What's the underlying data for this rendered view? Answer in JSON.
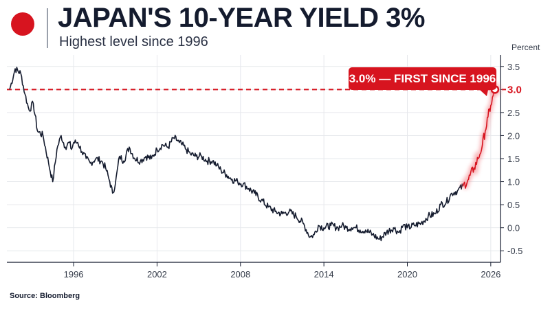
{
  "header": {
    "title": "JAPAN'S 10-YEAR YIELD 3%",
    "subtitle": "Highest level since 1996"
  },
  "colors": {
    "accent_red": "#d7141f",
    "line_navy": "#141b2e",
    "grid": "#e6e8ec"
  },
  "footer": {
    "source": "Source: Bloomberg"
  },
  "chart_data": {
    "type": "line",
    "title": "JAPAN'S 10-YEAR YIELD 3%",
    "subtitle": "Highest level since 1996",
    "ylabel": "Percent",
    "xlim": [
      1991.2,
      2026.7
    ],
    "ylim": [
      -0.75,
      3.75
    ],
    "y_ticks": [
      -0.5,
      0.0,
      0.5,
      1.0,
      1.5,
      2.0,
      2.5,
      3.0,
      3.5
    ],
    "y_tick_labels": [
      "-0.5",
      "0.0",
      "0.5",
      "1.0",
      "1.5",
      "2.0",
      "2.5",
      "3.0",
      "3.5"
    ],
    "x_ticks": [
      1996,
      2002,
      2008,
      2014,
      2020,
      2026
    ],
    "x_tick_labels": [
      "1996",
      "2002",
      "2008",
      "2014",
      "2020",
      "2026"
    ],
    "grid": "horizontal and vertical",
    "reference_line": {
      "y": 3.0,
      "style": "dashed",
      "color": "#d7141f"
    },
    "annotation": {
      "text": "3.0% — FIRST SINCE 1996",
      "highlight_value": "3.0"
    },
    "series": [
      {
        "color": "#141b2e",
        "x": [
          1991.4,
          1991.8,
          1992.2,
          1992.5,
          1992.8,
          1993.1,
          1993.4,
          1993.8,
          1994.2,
          1994.5,
          1994.8,
          1995.1,
          1995.4,
          1995.7,
          1995.85,
          1996.0,
          1996.3,
          1996.6,
          1996.9,
          1997.2,
          1997.6,
          1998.0,
          1998.3,
          1998.6,
          1998.8,
          1999.0,
          1999.3,
          1999.6,
          2000.0,
          2000.4,
          2000.8,
          2001.2,
          2001.6,
          2002.0,
          2002.4,
          2002.8,
          2003.2,
          2003.45,
          2003.6,
          2003.8,
          2004.1,
          2004.4,
          2004.8,
          2005.2,
          2005.6,
          2006.0,
          2006.3,
          2006.6,
          2007.0,
          2007.4,
          2007.8,
          2008.2,
          2008.6,
          2009.0,
          2009.5,
          2010.0,
          2010.5,
          2011.0,
          2011.5,
          2012.0,
          2012.5,
          2013.0,
          2013.3,
          2013.6,
          2014.0,
          2014.5,
          2015.0,
          2015.3,
          2015.6,
          2016.0,
          2016.3,
          2016.6,
          2017.0,
          2017.5,
          2018.0,
          2018.5,
          2019.0,
          2019.4,
          2019.7,
          2020.0,
          2020.5,
          2021.0,
          2021.5,
          2022.0,
          2022.4,
          2022.8,
          2023.2,
          2023.6,
          2024.0
        ],
        "values": [
          3.0,
          3.45,
          3.35,
          2.9,
          2.55,
          2.7,
          2.1,
          2.0,
          1.4,
          1.0,
          1.7,
          2.0,
          1.75,
          1.85,
          1.7,
          1.85,
          1.85,
          1.65,
          1.5,
          1.4,
          1.5,
          1.45,
          1.3,
          1.0,
          0.75,
          0.95,
          1.55,
          1.45,
          1.75,
          1.5,
          1.45,
          1.55,
          1.5,
          1.7,
          1.8,
          1.75,
          1.95,
          1.9,
          1.85,
          1.8,
          1.7,
          1.6,
          1.55,
          1.55,
          1.45,
          1.45,
          1.35,
          1.25,
          1.15,
          1.05,
          1.0,
          0.95,
          0.85,
          0.75,
          0.6,
          0.45,
          0.35,
          0.3,
          0.35,
          0.25,
          0.1,
          -0.2,
          -0.15,
          0.05,
          0.0,
          0.05,
          0.0,
          0.05,
          0.0,
          0.0,
          0.0,
          -0.05,
          -0.05,
          -0.15,
          -0.25,
          -0.1,
          0.0,
          -0.1,
          0.05,
          0.0,
          0.05,
          0.1,
          0.25,
          0.3,
          0.5,
          0.55,
          0.75,
          0.8,
          0.9
        ]
      },
      {
        "color": "#d7141f",
        "x": [
          2024.0,
          2024.4,
          2024.8,
          2025.1,
          2025.4,
          2025.6,
          2025.8,
          2026.0,
          2026.3
        ],
        "values": [
          0.9,
          1.05,
          1.3,
          1.5,
          1.8,
          2.1,
          2.4,
          2.65,
          3.0
        ]
      }
    ]
  }
}
